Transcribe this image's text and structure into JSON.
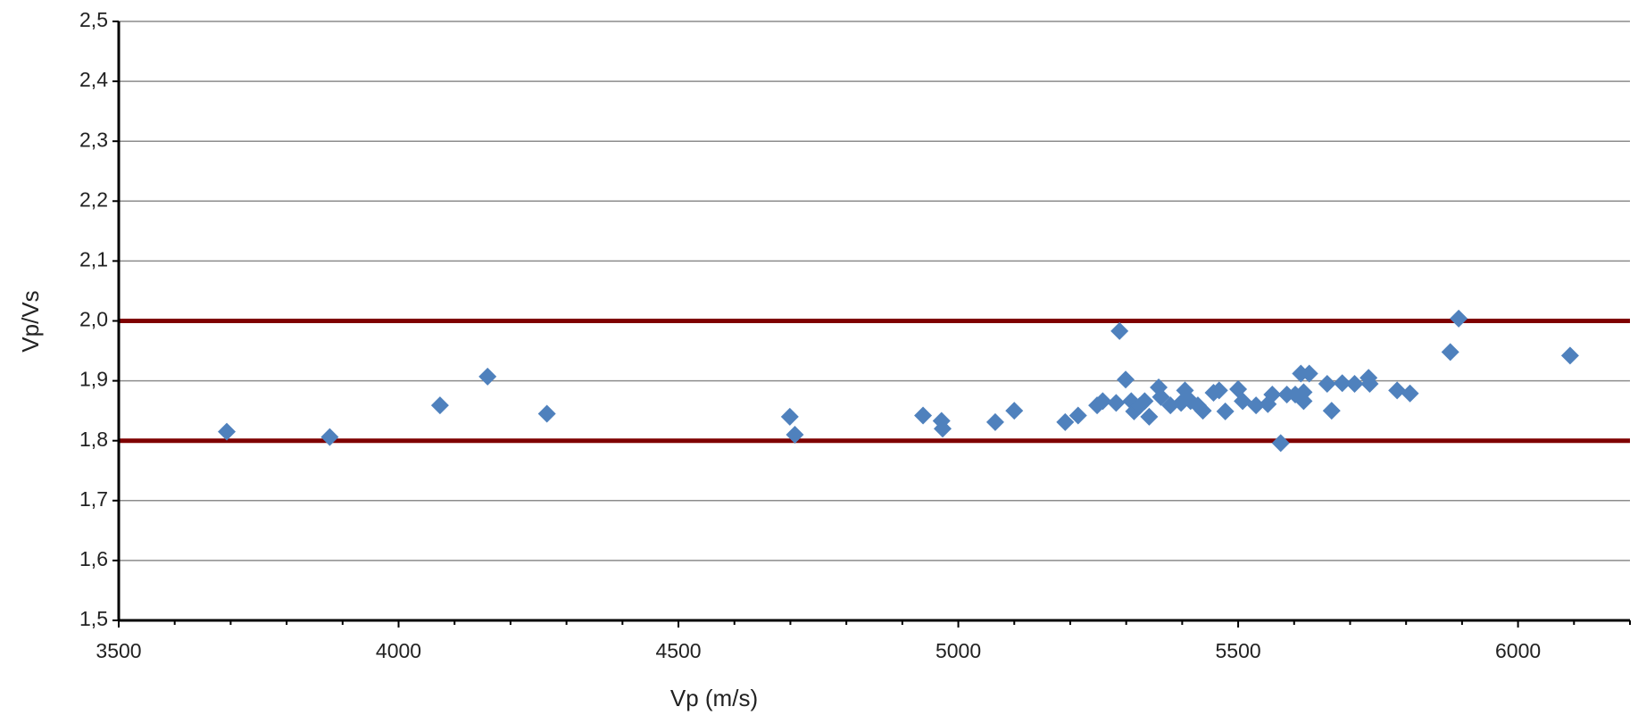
{
  "chart_data": {
    "type": "scatter",
    "x_label": "Vp (m/s)",
    "y_label": "Vp/Vs",
    "xlim": [
      3500,
      6200
    ],
    "ylim": [
      1.5,
      2.5
    ],
    "xticks": [
      3500,
      4000,
      4500,
      5000,
      5500,
      6000
    ],
    "xminorticks": [
      3600,
      3700,
      3800,
      3900,
      4100,
      4200,
      4300,
      4400,
      4600,
      4700,
      4800,
      4900,
      5100,
      5200,
      5300,
      5400,
      5600,
      5700,
      5800,
      5900,
      6100,
      6200
    ],
    "yticks": [
      {
        "value": 1.5,
        "label": "1,5"
      },
      {
        "value": 1.6,
        "label": "1,6"
      },
      {
        "value": 1.7,
        "label": "1,7"
      },
      {
        "value": 1.8,
        "label": "1,8"
      },
      {
        "value": 1.9,
        "label": "1,9"
      },
      {
        "value": 2.0,
        "label": "2,0"
      },
      {
        "value": 2.1,
        "label": "2,1"
      },
      {
        "value": 2.2,
        "label": "2,2"
      },
      {
        "value": 2.3,
        "label": "2,3"
      },
      {
        "value": 2.4,
        "label": "2,4"
      },
      {
        "value": 2.5,
        "label": "2,5"
      }
    ],
    "grid": true,
    "hlines": [
      {
        "value": 2.0,
        "color": "#7f0000"
      },
      {
        "value": 1.8,
        "color": "#7f0000"
      }
    ],
    "series": [
      {
        "color": "#4f81bd",
        "x": [
          3693,
          3877,
          4074,
          4159,
          4265,
          4699,
          4708,
          4937,
          4970,
          4972,
          5066,
          5100,
          5191,
          5214,
          5248,
          5258,
          5282,
          5288,
          5299,
          5309,
          5314,
          5324,
          5333,
          5341,
          5358,
          5362,
          5379,
          5398,
          5405,
          5415,
          5428,
          5437,
          5456,
          5466,
          5477,
          5500,
          5508,
          5532,
          5553,
          5561,
          5576,
          5587,
          5602,
          5612,
          5617,
          5617,
          5627,
          5659,
          5667,
          5686,
          5708,
          5733,
          5735,
          5784,
          5807,
          5879,
          5894,
          6093
        ],
        "values": [
          1.815,
          1.806,
          1.859,
          1.907,
          1.845,
          1.84,
          1.81,
          1.842,
          1.833,
          1.82,
          1.831,
          1.85,
          1.831,
          1.842,
          1.859,
          1.866,
          1.863,
          1.983,
          1.902,
          1.866,
          1.849,
          1.858,
          1.866,
          1.84,
          1.889,
          1.873,
          1.859,
          1.863,
          1.884,
          1.866,
          1.859,
          1.85,
          1.88,
          1.884,
          1.849,
          1.886,
          1.866,
          1.859,
          1.861,
          1.877,
          1.796,
          1.877,
          1.877,
          1.912,
          1.881,
          1.866,
          1.912,
          1.895,
          1.85,
          1.896,
          1.895,
          1.905,
          1.895,
          1.884,
          1.879,
          1.948,
          2.004,
          1.942
        ]
      }
    ]
  }
}
